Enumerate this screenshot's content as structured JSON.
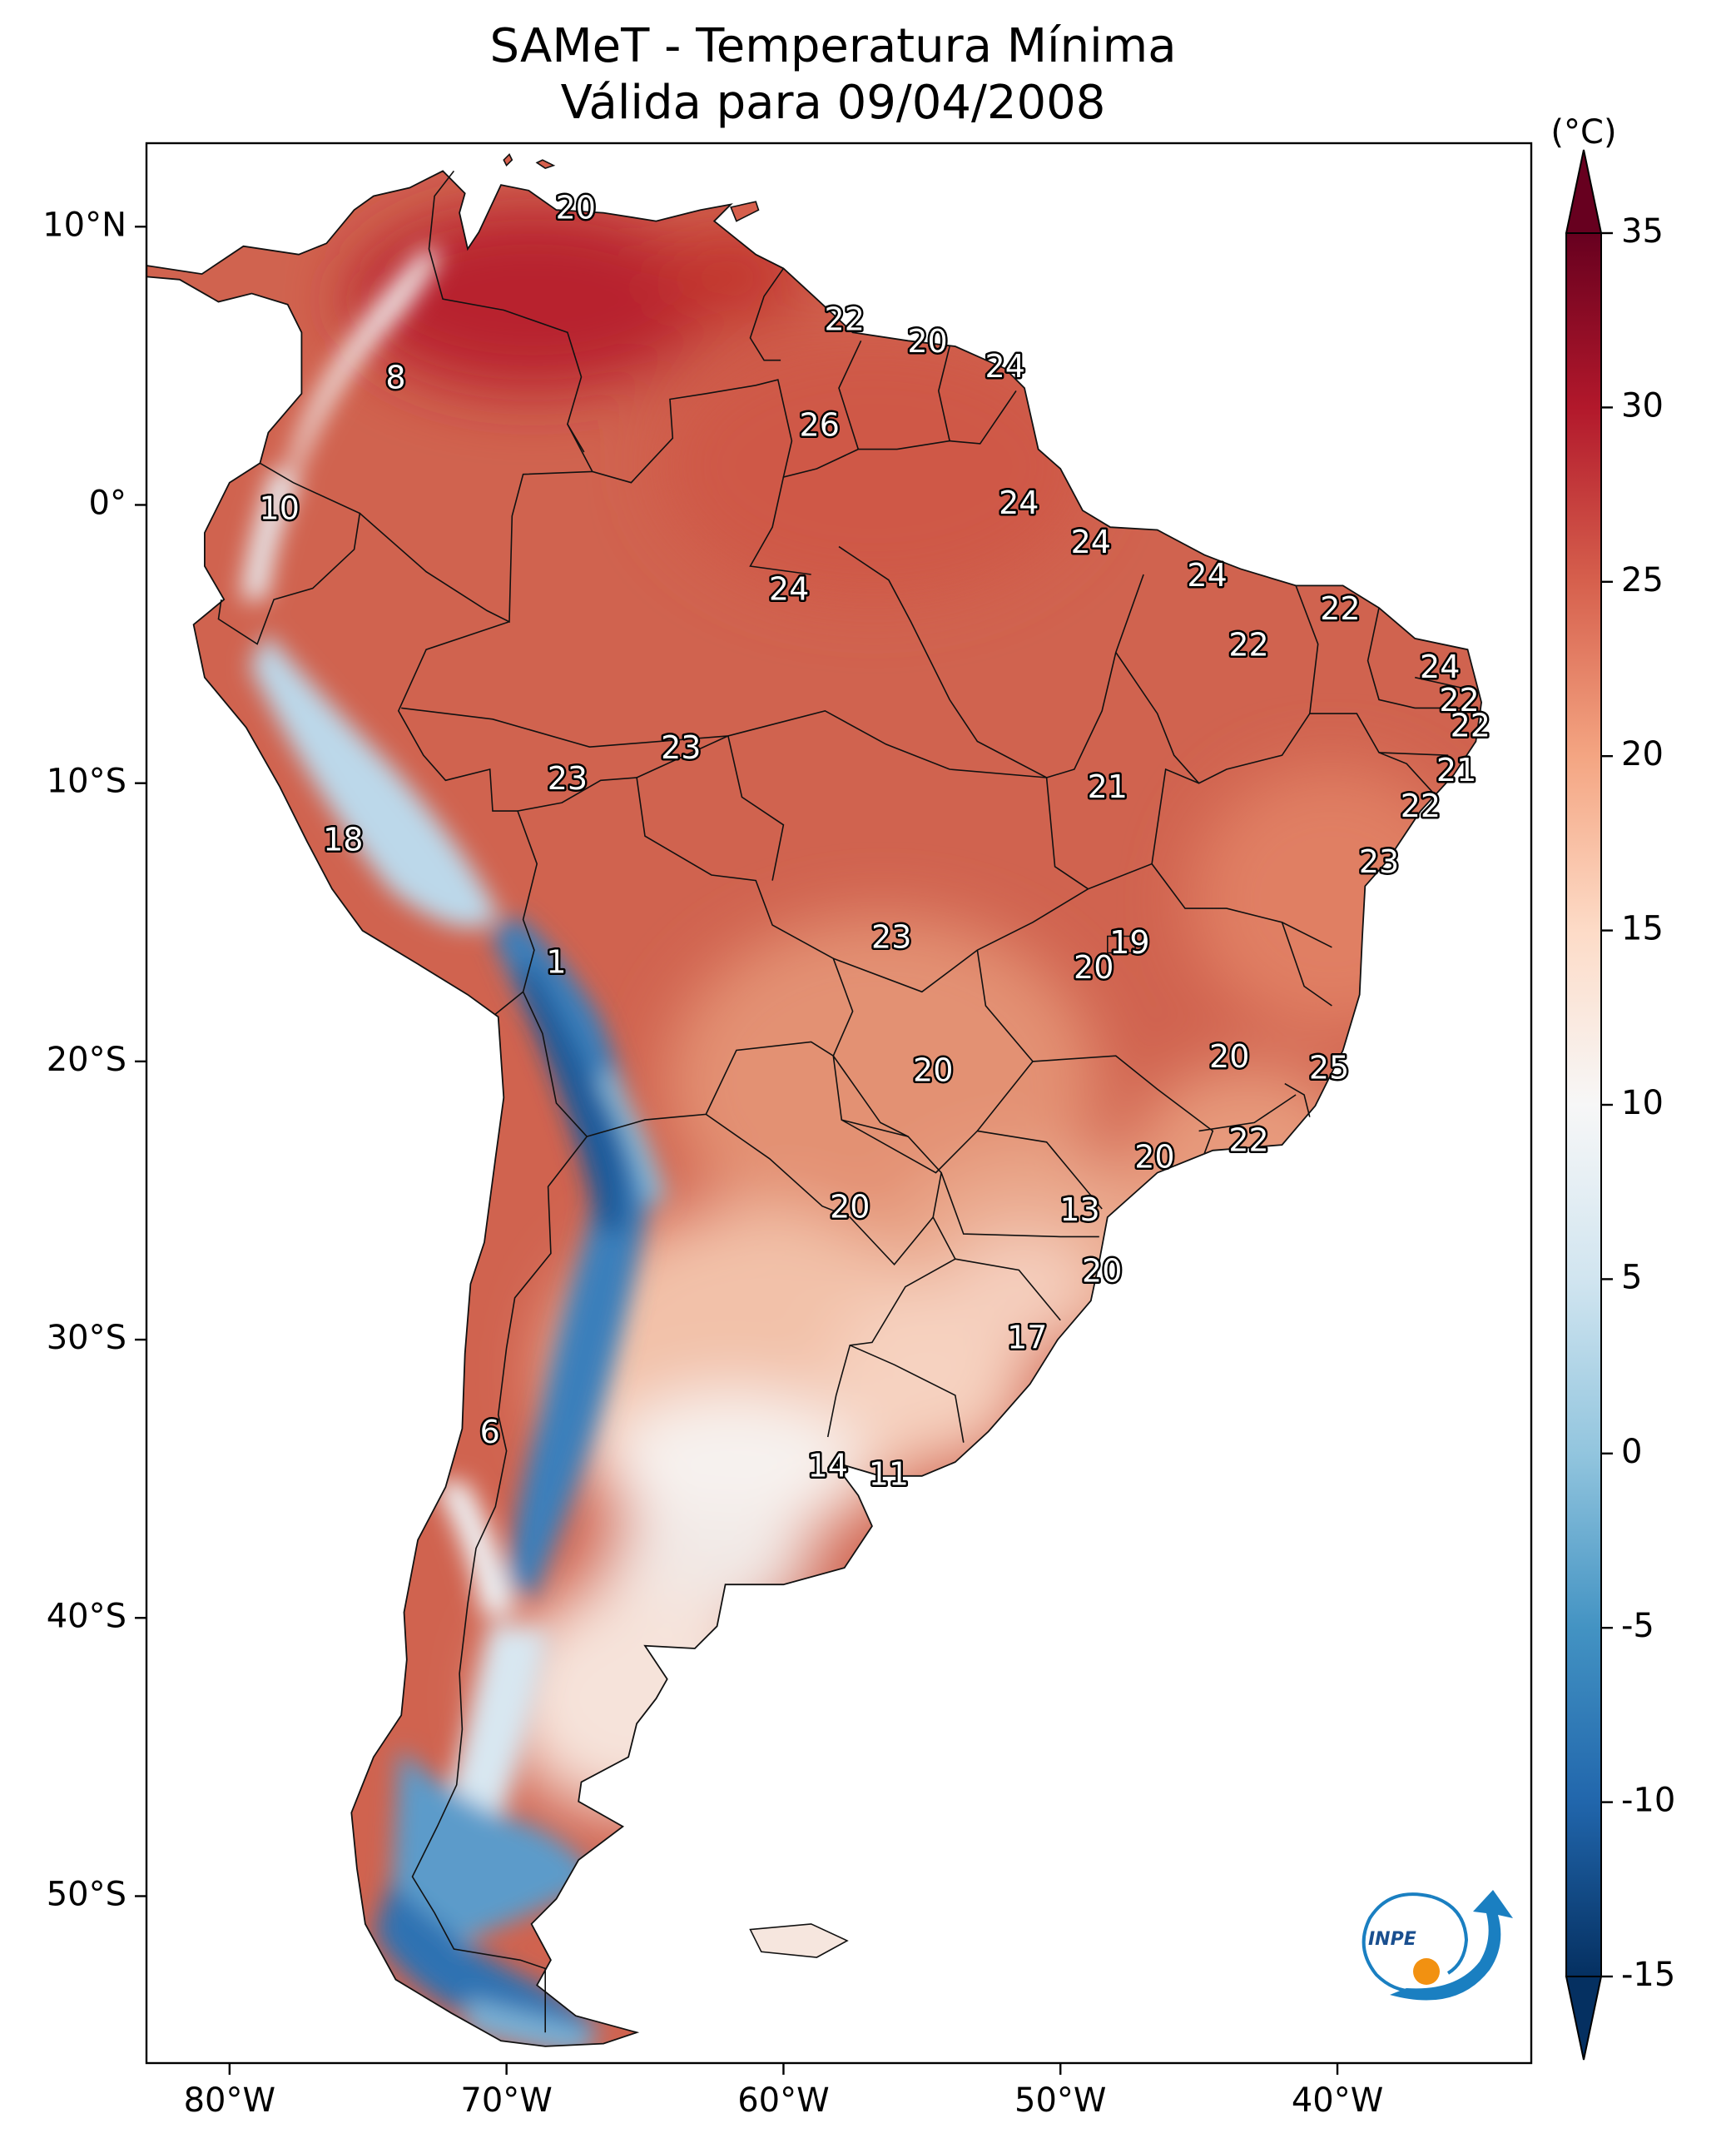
{
  "title": {
    "line1": "SAMeT - Temperatura Mínima",
    "line2": "Válida para 09/04/2008"
  },
  "map": {
    "lon_range": [
      -83,
      -33
    ],
    "lat_range": [
      -56,
      13
    ],
    "lon_ticks": [
      {
        "value": -80,
        "label": "80°W"
      },
      {
        "value": -70,
        "label": "70°W"
      },
      {
        "value": -60,
        "label": "60°W"
      },
      {
        "value": -50,
        "label": "50°W"
      },
      {
        "value": -40,
        "label": "40°W"
      }
    ],
    "lat_ticks": [
      {
        "value": 10,
        "label": "10°N"
      },
      {
        "value": 0,
        "label": "0°"
      },
      {
        "value": -10,
        "label": "10°S"
      },
      {
        "value": -20,
        "label": "20°S"
      },
      {
        "value": -30,
        "label": "30°S"
      },
      {
        "value": -40,
        "label": "40°S"
      },
      {
        "value": -50,
        "label": "50°S"
      }
    ],
    "station_values": [
      {
        "lon": -67.5,
        "lat": 10.6,
        "text": "20"
      },
      {
        "lon": -74.0,
        "lat": 4.5,
        "text": "8"
      },
      {
        "lon": -57.8,
        "lat": 6.6,
        "text": "22"
      },
      {
        "lon": -54.8,
        "lat": 5.8,
        "text": "20"
      },
      {
        "lon": -52.0,
        "lat": 4.9,
        "text": "24"
      },
      {
        "lon": -58.7,
        "lat": 2.8,
        "text": "26"
      },
      {
        "lon": -78.2,
        "lat": -0.2,
        "text": "10"
      },
      {
        "lon": -51.5,
        "lat": 0.0,
        "text": "24"
      },
      {
        "lon": -48.9,
        "lat": -1.4,
        "text": "24"
      },
      {
        "lon": -44.7,
        "lat": -2.6,
        "text": "24"
      },
      {
        "lon": -39.9,
        "lat": -3.8,
        "text": "22"
      },
      {
        "lon": -59.8,
        "lat": -3.1,
        "text": "24"
      },
      {
        "lon": -43.2,
        "lat": -5.1,
        "text": "22"
      },
      {
        "lon": -36.3,
        "lat": -5.9,
        "text": "24"
      },
      {
        "lon": -35.6,
        "lat": -7.1,
        "text": "22"
      },
      {
        "lon": -35.2,
        "lat": -8.0,
        "text": "22"
      },
      {
        "lon": -63.7,
        "lat": -8.8,
        "text": "23"
      },
      {
        "lon": -67.8,
        "lat": -9.9,
        "text": "23"
      },
      {
        "lon": -35.7,
        "lat": -9.6,
        "text": "21"
      },
      {
        "lon": -48.3,
        "lat": -10.2,
        "text": "21"
      },
      {
        "lon": -37.0,
        "lat": -10.9,
        "text": "22"
      },
      {
        "lon": -75.9,
        "lat": -12.1,
        "text": "18"
      },
      {
        "lon": -38.5,
        "lat": -12.9,
        "text": "23"
      },
      {
        "lon": -56.1,
        "lat": -15.6,
        "text": "23"
      },
      {
        "lon": -47.5,
        "lat": -15.8,
        "text": "19"
      },
      {
        "lon": -48.8,
        "lat": -16.7,
        "text": "20"
      },
      {
        "lon": -68.2,
        "lat": -16.5,
        "text": "1"
      },
      {
        "lon": -54.6,
        "lat": -20.4,
        "text": "20"
      },
      {
        "lon": -43.9,
        "lat": -19.9,
        "text": "20"
      },
      {
        "lon": -40.3,
        "lat": -20.3,
        "text": "25"
      },
      {
        "lon": -43.2,
        "lat": -22.9,
        "text": "22"
      },
      {
        "lon": -46.6,
        "lat": -23.5,
        "text": "20"
      },
      {
        "lon": -57.6,
        "lat": -25.3,
        "text": "20"
      },
      {
        "lon": -49.3,
        "lat": -25.4,
        "text": "13"
      },
      {
        "lon": -48.5,
        "lat": -27.6,
        "text": "20"
      },
      {
        "lon": -51.2,
        "lat": -30.0,
        "text": "17"
      },
      {
        "lon": -70.6,
        "lat": -33.4,
        "text": "6"
      },
      {
        "lon": -58.4,
        "lat": -34.6,
        "text": "14"
      },
      {
        "lon": -56.2,
        "lat": -34.9,
        "text": "11"
      }
    ]
  },
  "colorbar": {
    "unit": "(°C)",
    "range": [
      -15,
      35
    ],
    "ticks": [
      {
        "value": 35,
        "label": "35"
      },
      {
        "value": 30,
        "label": "30"
      },
      {
        "value": 25,
        "label": "25"
      },
      {
        "value": 20,
        "label": "20"
      },
      {
        "value": 15,
        "label": "15"
      },
      {
        "value": 10,
        "label": "10"
      },
      {
        "value": 5,
        "label": "5"
      },
      {
        "value": 0,
        "label": "0"
      },
      {
        "value": -5,
        "label": "-5"
      },
      {
        "value": -10,
        "label": "-10"
      },
      {
        "value": -15,
        "label": "-15"
      }
    ],
    "colors": [
      "#053061",
      "#2166ac",
      "#4393c3",
      "#92c5de",
      "#d1e5f0",
      "#f7f7f7",
      "#fddbc7",
      "#f4a582",
      "#d6604d",
      "#b2182b",
      "#67001f"
    ]
  },
  "logo": {
    "text": "INPE",
    "color_blue": "#1a7fc1",
    "color_orange": "#f29111"
  }
}
